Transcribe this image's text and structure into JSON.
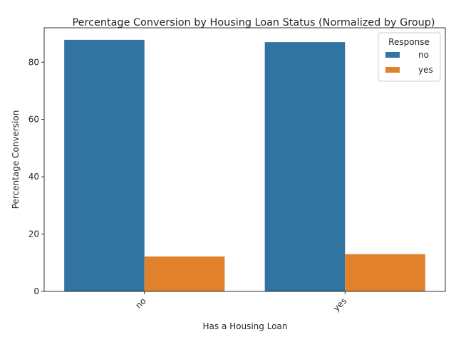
{
  "chart_data": {
    "type": "bar",
    "title": "Percentage Conversion by Housing Loan Status (Normalized by Group)",
    "xlabel": "Has a Housing Loan",
    "ylabel": "Percentage Conversion",
    "categories": [
      "no",
      "yes"
    ],
    "series": [
      {
        "name": "no",
        "values": [
          87.8,
          87.0
        ],
        "color": "#3274a1"
      },
      {
        "name": "yes",
        "values": [
          12.2,
          13.0
        ],
        "color": "#e1812c"
      }
    ],
    "ylim": [
      0,
      92
    ],
    "yticks": [
      0,
      20,
      40,
      60,
      80
    ],
    "legend": {
      "title": "Response",
      "placement": "top-right"
    },
    "grid": false,
    "x_tick_rotation": 45
  }
}
